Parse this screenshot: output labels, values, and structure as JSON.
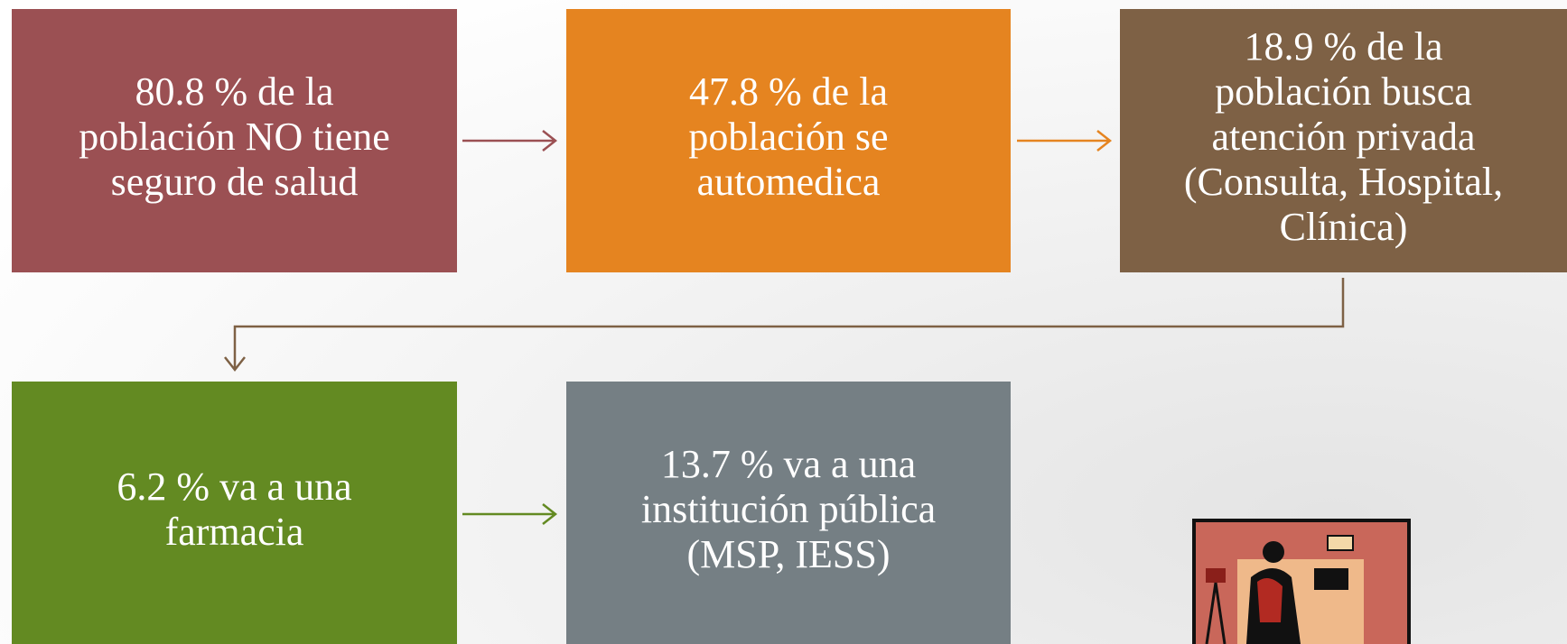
{
  "nodes": [
    {
      "lines": [
        "80.8 % de la",
        "población NO tiene",
        "seguro de salud"
      ]
    },
    {
      "lines": [
        "47.8 % de la",
        "población se",
        "automedica"
      ]
    },
    {
      "lines": [
        "18.9 % de la",
        "población busca",
        "atención privada",
        "(Consulta, Hospital,",
        "Clínica)"
      ]
    },
    {
      "lines": [
        "6.2 % va a una",
        "farmacia"
      ]
    },
    {
      "lines": [
        "13.7 % va a una",
        "institución pública",
        "(MSP, IESS)"
      ]
    }
  ]
}
